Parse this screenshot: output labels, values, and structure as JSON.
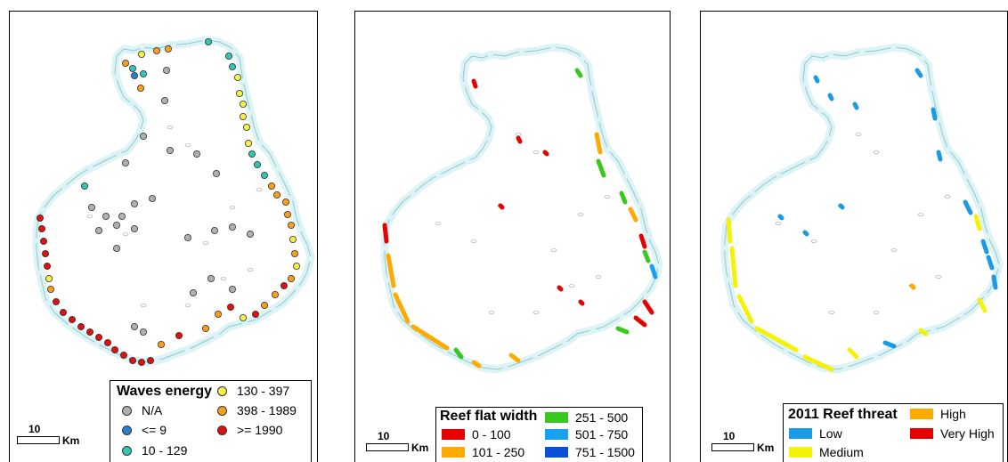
{
  "panels": [
    {
      "legend_title": "Waves energy",
      "legend_items": [
        {
          "label": "N/A",
          "color": "#b0b0b0"
        },
        {
          "label": "<= 9",
          "color": "#2b7fd0"
        },
        {
          "label": "10 - 129",
          "color": "#35c4b4"
        },
        {
          "label": "130 - 397",
          "color": "#f2f24a"
        },
        {
          "label": "398 - 1989",
          "color": "#f5a020"
        },
        {
          "label": ">= 1990",
          "color": "#dd1111"
        }
      ]
    },
    {
      "legend_title": "Reef flat width",
      "legend_items": [
        {
          "label": "0 - 100",
          "color": "#e60000"
        },
        {
          "label": "101 - 250",
          "color": "#ffaa00"
        },
        {
          "label": "251 - 500",
          "color": "#38c81e"
        },
        {
          "label": "501 - 750",
          "color": "#19a0f0"
        },
        {
          "label": "751 - 1500",
          "color": "#0a4fd6"
        }
      ]
    },
    {
      "legend_title": "2011 Reef threat",
      "legend_items": [
        {
          "label": "Low",
          "color": "#1a9be6"
        },
        {
          "label": "Medium",
          "color": "#f5f20a"
        },
        {
          "label": "High",
          "color": "#ffaa00"
        },
        {
          "label": "Very High",
          "color": "#e60000"
        }
      ]
    }
  ],
  "scale_bar": {
    "value": "10",
    "unit": "Km"
  },
  "colors": {
    "reef_fill": "#def3f5",
    "reef_outline": "#8fc9cf",
    "lagoon_outline": "#9a9a9a"
  }
}
